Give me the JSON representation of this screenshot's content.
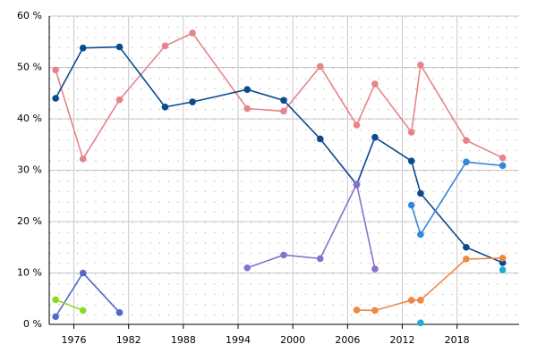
{
  "chart_data": {
    "type": "line",
    "x": [
      1974,
      1977,
      1981,
      1986,
      1989,
      1995,
      1999,
      2003,
      2007,
      2009,
      2013,
      2014,
      2019,
      2023
    ],
    "xlim": [
      1973.3,
      2024.8
    ],
    "xticks": [
      1976,
      1982,
      1988,
      1994,
      2000,
      2006,
      2012,
      2018
    ],
    "ylim": [
      0,
      60
    ],
    "yticks": [
      {
        "value": 0,
        "label": "0 %"
      },
      {
        "value": 10,
        "label": "10 %"
      },
      {
        "value": 20,
        "label": "20 %"
      },
      {
        "value": 30,
        "label": "30 %"
      },
      {
        "value": 40,
        "label": "40 %"
      },
      {
        "value": 50,
        "label": "50 %"
      },
      {
        "value": 60,
        "label": "60 %"
      }
    ],
    "grid": true,
    "series": [
      {
        "color": "#e8838a",
        "values": [
          49.5,
          32.2,
          43.7,
          54.2,
          56.7,
          42.0,
          41.5,
          50.2,
          38.8,
          46.8,
          37.4,
          50.5,
          35.8,
          32.4
        ]
      },
      {
        "color": "#0a4a8f",
        "values": [
          44.0,
          53.8,
          54.0,
          42.3,
          43.3,
          45.7,
          43.6,
          36.1,
          27.2,
          36.4,
          31.8,
          25.5,
          15.0,
          12.0
        ]
      },
      {
        "color": "#8a70cc",
        "values": [
          null,
          null,
          null,
          null,
          null,
          11.0,
          13.5,
          12.8,
          27.3,
          10.8,
          null,
          null,
          null,
          null
        ]
      },
      {
        "color": "#5566cc",
        "values": [
          1.5,
          10.0,
          2.3,
          null,
          null,
          null,
          null,
          null,
          null,
          null,
          null,
          null,
          null,
          null
        ]
      },
      {
        "color": "#88dd22",
        "values": [
          4.8,
          2.7,
          null,
          null,
          null,
          null,
          null,
          null,
          null,
          null,
          null,
          null,
          null,
          null
        ]
      },
      {
        "color": "#ee8844",
        "values": [
          null,
          null,
          null,
          null,
          null,
          null,
          null,
          null,
          2.8,
          2.7,
          4.7,
          4.7,
          12.7,
          12.9
        ]
      },
      {
        "color": "#3388dd",
        "values": [
          null,
          null,
          null,
          null,
          null,
          null,
          null,
          null,
          null,
          null,
          23.2,
          17.5,
          31.6,
          30.9
        ]
      },
      {
        "color": "#22aacc",
        "values": [
          null,
          null,
          null,
          null,
          null,
          null,
          null,
          null,
          null,
          null,
          null,
          0.3,
          null,
          10.6
        ]
      }
    ]
  }
}
